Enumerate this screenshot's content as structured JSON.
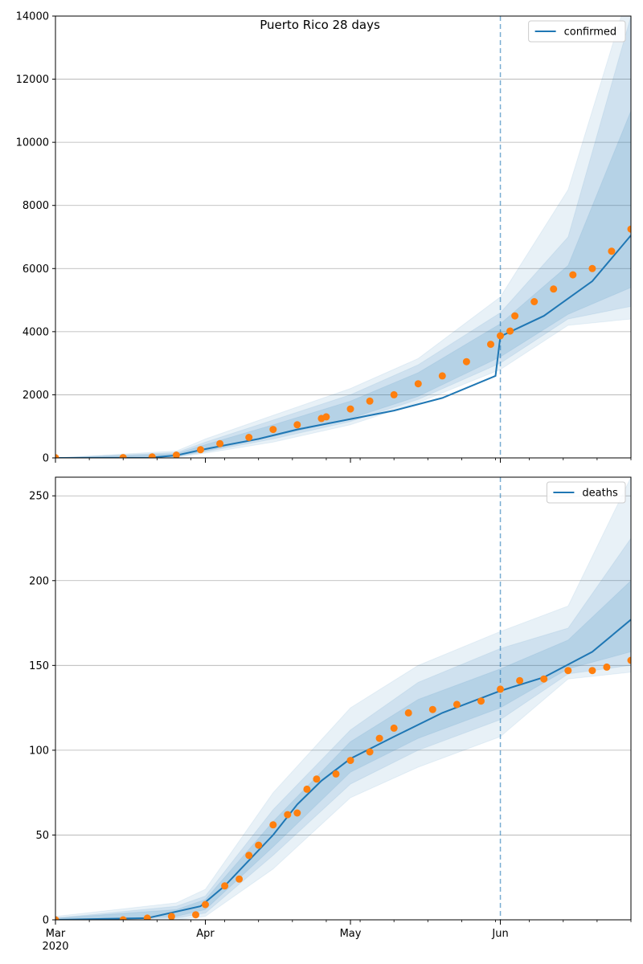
{
  "chart_data": [
    {
      "type": "line",
      "title": "Puerto Rico 28 days",
      "xlabel": "",
      "ylabel": "",
      "x_start": "2020-03-01",
      "x_end": "2020-06-28",
      "x_ticks": [
        {
          "date": "2020-03-01",
          "label": "Mar"
        },
        {
          "date": "2020-04-01",
          "label": "Apr"
        },
        {
          "date": "2020-05-01",
          "label": "May"
        },
        {
          "date": "2020-06-01",
          "label": "Jun"
        }
      ],
      "x_year_label": "2020",
      "ylim": [
        0,
        14000
      ],
      "y_ticks": [
        0,
        2000,
        4000,
        6000,
        8000,
        10000,
        12000,
        14000
      ],
      "grid": "horizontal",
      "forecast_start": "2020-06-01",
      "legend": {
        "position": "top-right",
        "entries": [
          "confirmed"
        ]
      },
      "series": [
        {
          "name": "confirmed",
          "kind": "model-median-line",
          "color": "#1f77b4",
          "points": [
            [
              "2020-03-01",
              0
            ],
            [
              "2020-03-20",
              0
            ],
            [
              "2020-03-26",
              80
            ],
            [
              "2020-03-31",
              250
            ],
            [
              "2020-04-05",
              400
            ],
            [
              "2020-04-12",
              600
            ],
            [
              "2020-04-20",
              900
            ],
            [
              "2020-04-30",
              1200
            ],
            [
              "2020-05-10",
              1500
            ],
            [
              "2020-05-20",
              1900
            ],
            [
              "2020-05-31",
              2600
            ],
            [
              "2020-06-01",
              3850
            ],
            [
              "2020-06-10",
              4500
            ],
            [
              "2020-06-20",
              5600
            ],
            [
              "2020-06-28",
              7050
            ]
          ]
        },
        {
          "name": "observed confirmed",
          "kind": "observed-points",
          "color": "#ff7f0e",
          "points": [
            [
              "2020-03-01",
              5
            ],
            [
              "2020-03-15",
              10
            ],
            [
              "2020-03-21",
              30
            ],
            [
              "2020-03-26",
              90
            ],
            [
              "2020-03-31",
              260
            ],
            [
              "2020-04-04",
              450
            ],
            [
              "2020-04-10",
              650
            ],
            [
              "2020-04-15",
              900
            ],
            [
              "2020-04-20",
              1050
            ],
            [
              "2020-04-25",
              1250
            ],
            [
              "2020-04-26",
              1300
            ],
            [
              "2020-05-01",
              1550
            ],
            [
              "2020-05-05",
              1800
            ],
            [
              "2020-05-10",
              2000
            ],
            [
              "2020-05-15",
              2350
            ],
            [
              "2020-05-20",
              2600
            ],
            [
              "2020-05-25",
              3050
            ],
            [
              "2020-05-30",
              3600
            ],
            [
              "2020-06-01",
              3870
            ],
            [
              "2020-06-03",
              4020
            ],
            [
              "2020-06-04",
              4500
            ],
            [
              "2020-06-08",
              4950
            ],
            [
              "2020-06-12",
              5350
            ],
            [
              "2020-06-16",
              5800
            ],
            [
              "2020-06-20",
              6000
            ],
            [
              "2020-06-24",
              6550
            ],
            [
              "2020-06-28",
              7250
            ]
          ]
        }
      ],
      "uncertainty_bands": [
        {
          "level": "outer",
          "color": "#1f77b4",
          "points": [
            [
              "2020-03-01",
              0,
              0
            ],
            [
              "2020-03-26",
              20,
              220
            ],
            [
              "2020-04-01",
              150,
              600
            ],
            [
              "2020-04-15",
              500,
              1350
            ],
            [
              "2020-05-01",
              1050,
              2200
            ],
            [
              "2020-05-15",
              1750,
              3150
            ],
            [
              "2020-06-01",
              2800,
              5100
            ],
            [
              "2020-06-15",
              4200,
              8500
            ],
            [
              "2020-06-28",
              4400,
              15000
            ]
          ]
        },
        {
          "level": "middle",
          "color": "#1f77b4",
          "points": [
            [
              "2020-03-01",
              0,
              0
            ],
            [
              "2020-03-26",
              40,
              170
            ],
            [
              "2020-04-01",
              190,
              500
            ],
            [
              "2020-04-15",
              600,
              1200
            ],
            [
              "2020-05-01",
              1150,
              2000
            ],
            [
              "2020-05-15",
              1850,
              2950
            ],
            [
              "2020-06-01",
              3000,
              4600
            ],
            [
              "2020-06-15",
              4400,
              7000
            ],
            [
              "2020-06-28",
              4800,
              14000
            ]
          ]
        },
        {
          "level": "inner",
          "color": "#1f77b4",
          "points": [
            [
              "2020-03-01",
              0,
              0
            ],
            [
              "2020-03-26",
              55,
              130
            ],
            [
              "2020-04-01",
              220,
              420
            ],
            [
              "2020-04-15",
              680,
              1050
            ],
            [
              "2020-05-01",
              1250,
              1800
            ],
            [
              "2020-05-15",
              1950,
              2700
            ],
            [
              "2020-06-01",
              3200,
              4250
            ],
            [
              "2020-06-15",
              4550,
              6100
            ],
            [
              "2020-06-28",
              5400,
              11000
            ]
          ]
        }
      ]
    },
    {
      "type": "line",
      "title": "",
      "xlabel": "",
      "ylabel": "",
      "x_start": "2020-03-01",
      "x_end": "2020-06-28",
      "x_ticks": [
        {
          "date": "2020-03-01",
          "label": "Mar"
        },
        {
          "date": "2020-04-01",
          "label": "Apr"
        },
        {
          "date": "2020-05-01",
          "label": "May"
        },
        {
          "date": "2020-06-01",
          "label": "Jun"
        }
      ],
      "x_year_label": "2020",
      "ylim": [
        0,
        261
      ],
      "y_ticks": [
        0,
        50,
        100,
        150,
        200,
        250
      ],
      "grid": "horizontal",
      "forecast_start": "2020-06-01",
      "legend": {
        "position": "top-right",
        "entries": [
          "deaths"
        ]
      },
      "series": [
        {
          "name": "deaths",
          "kind": "model-median-line",
          "color": "#1f77b4",
          "points": [
            [
              "2020-03-01",
              0
            ],
            [
              "2020-03-20",
              1
            ],
            [
              "2020-03-31",
              8
            ],
            [
              "2020-04-05",
              20
            ],
            [
              "2020-04-10",
              35
            ],
            [
              "2020-04-15",
              50
            ],
            [
              "2020-04-20",
              68
            ],
            [
              "2020-04-25",
              82
            ],
            [
              "2020-05-01",
              95
            ],
            [
              "2020-05-10",
              108
            ],
            [
              "2020-05-20",
              122
            ],
            [
              "2020-06-01",
              135
            ],
            [
              "2020-06-10",
              143
            ],
            [
              "2020-06-20",
              158
            ],
            [
              "2020-06-28",
              177
            ]
          ]
        },
        {
          "name": "observed deaths",
          "kind": "observed-points",
          "color": "#ff7f0e",
          "points": [
            [
              "2020-03-01",
              0
            ],
            [
              "2020-03-15",
              0
            ],
            [
              "2020-03-20",
              1
            ],
            [
              "2020-03-25",
              2
            ],
            [
              "2020-03-30",
              3
            ],
            [
              "2020-04-01",
              9
            ],
            [
              "2020-04-05",
              20
            ],
            [
              "2020-04-08",
              24
            ],
            [
              "2020-04-10",
              38
            ],
            [
              "2020-04-12",
              44
            ],
            [
              "2020-04-15",
              56
            ],
            [
              "2020-04-18",
              62
            ],
            [
              "2020-04-20",
              63
            ],
            [
              "2020-04-22",
              77
            ],
            [
              "2020-04-24",
              83
            ],
            [
              "2020-04-28",
              86
            ],
            [
              "2020-05-01",
              94
            ],
            [
              "2020-05-05",
              99
            ],
            [
              "2020-05-07",
              107
            ],
            [
              "2020-05-10",
              113
            ],
            [
              "2020-05-13",
              122
            ],
            [
              "2020-05-18",
              124
            ],
            [
              "2020-05-23",
              127
            ],
            [
              "2020-05-28",
              129
            ],
            [
              "2020-06-01",
              136
            ],
            [
              "2020-06-05",
              141
            ],
            [
              "2020-06-10",
              142
            ],
            [
              "2020-06-15",
              147
            ],
            [
              "2020-06-20",
              147
            ],
            [
              "2020-06-23",
              149
            ],
            [
              "2020-06-28",
              153
            ]
          ]
        }
      ],
      "uncertainty_bands": [
        {
          "level": "outer",
          "color": "#1f77b4",
          "points": [
            [
              "2020-03-01",
              0,
              2
            ],
            [
              "2020-03-26",
              0,
              10
            ],
            [
              "2020-04-01",
              2,
              18
            ],
            [
              "2020-04-15",
              30,
              75
            ],
            [
              "2020-05-01",
              72,
              125
            ],
            [
              "2020-05-15",
              90,
              150
            ],
            [
              "2020-06-01",
              108,
              170
            ],
            [
              "2020-06-15",
              142,
              185
            ],
            [
              "2020-06-28",
              146,
              261
            ]
          ]
        },
        {
          "level": "middle",
          "color": "#1f77b4",
          "points": [
            [
              "2020-03-01",
              0,
              1
            ],
            [
              "2020-03-26",
              1,
              8
            ],
            [
              "2020-04-01",
              4,
              14
            ],
            [
              "2020-04-15",
              38,
              65
            ],
            [
              "2020-05-01",
              80,
              112
            ],
            [
              "2020-05-15",
              100,
              140
            ],
            [
              "2020-06-01",
              118,
              160
            ],
            [
              "2020-06-15",
              145,
              172
            ],
            [
              "2020-06-28",
              150,
              225
            ]
          ]
        },
        {
          "level": "inner",
          "color": "#1f77b4",
          "points": [
            [
              "2020-03-01",
              0,
              1
            ],
            [
              "2020-03-26",
              2,
              6
            ],
            [
              "2020-04-01",
              6,
              12
            ],
            [
              "2020-04-15",
              43,
              58
            ],
            [
              "2020-05-01",
              87,
              105
            ],
            [
              "2020-05-15",
              107,
              130
            ],
            [
              "2020-06-01",
              125,
              148
            ],
            [
              "2020-06-15",
              148,
              165
            ],
            [
              "2020-06-28",
              158,
              200
            ]
          ]
        }
      ]
    }
  ]
}
